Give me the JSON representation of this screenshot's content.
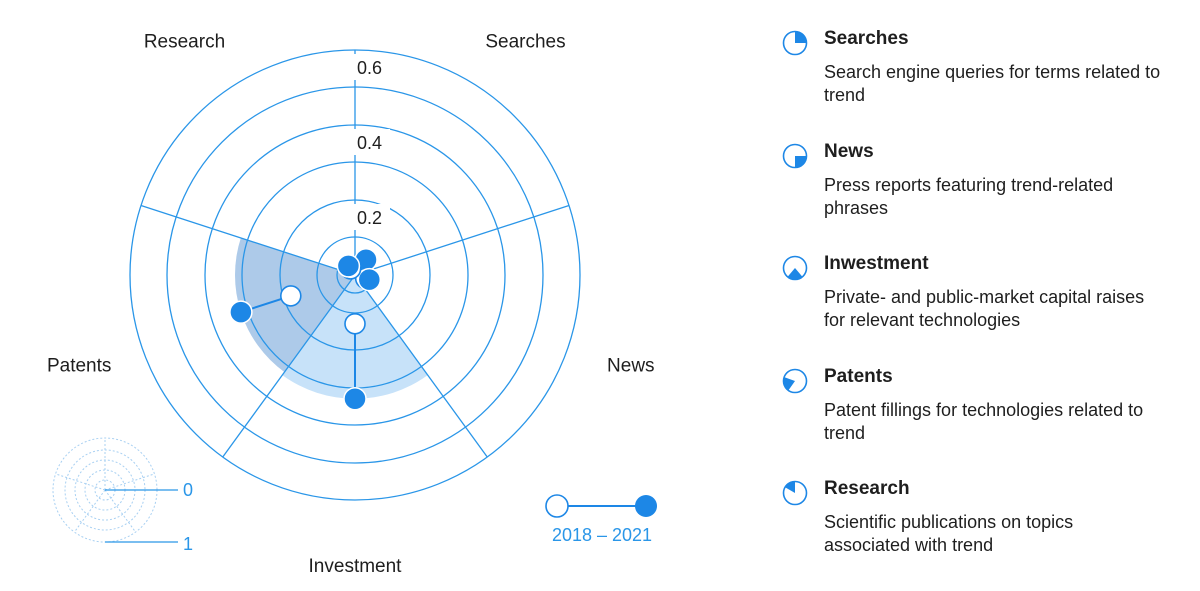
{
  "chart_data": {
    "type": "polar",
    "categories": [
      "Searches",
      "News",
      "Investment",
      "Patents",
      "Research"
    ],
    "r_ticks": [
      0.2,
      0.4,
      0.6
    ],
    "series": [
      {
        "name": "2018",
        "values": [
          0.02,
          0.03,
          0.13,
          0.18,
          0.02
        ]
      },
      {
        "name": "2021",
        "values": [
          0.05,
          0.04,
          0.33,
          0.32,
          0.03
        ]
      }
    ],
    "period_label": "2018 – 2021",
    "scale_key": {
      "low": "0",
      "high": "1"
    },
    "colors": {
      "ring": "#2a96e8",
      "dot": "#1d87e6",
      "wedge_light": "#c7e2f9",
      "wedge_dark": "#a9c7e8"
    }
  },
  "legend": [
    {
      "icon": "searches-pie-icon",
      "title": "Searches",
      "desc": "Search engine queries for terms related to trend"
    },
    {
      "icon": "news-pie-icon",
      "title": "News",
      "desc": "Press reports featuring trend-related phrases"
    },
    {
      "icon": "investment-pie-icon",
      "title": "Inwestment",
      "desc": "Private- and public-market capital raises for relevant technologies"
    },
    {
      "icon": "patents-pie-icon",
      "title": "Patents",
      "desc": "Patent fillings for technologies related to trend"
    },
    {
      "icon": "research-pie-icon",
      "title": "Research",
      "desc": "Scientific publications on topics associated with trend"
    }
  ]
}
